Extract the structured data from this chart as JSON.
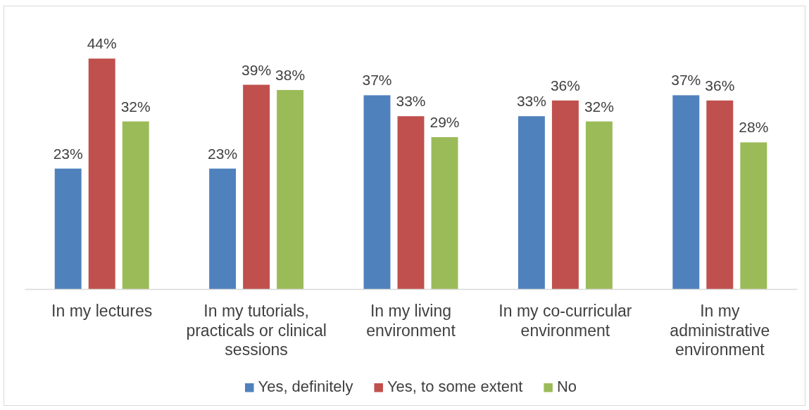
{
  "chart_data": {
    "type": "bar",
    "categories": [
      "In my lectures",
      "In my tutorials, practicals or clinical sessions",
      "In my living environment",
      "In my co-curricular environment",
      "In my administrative environment"
    ],
    "series": [
      {
        "name": "Yes, definitely",
        "color": "#4f81bd",
        "values": [
          23,
          23,
          37,
          33,
          37
        ],
        "value_labels": [
          "23%",
          "23%",
          "37%",
          "33%",
          "37%"
        ]
      },
      {
        "name": "Yes, to some extent",
        "color": "#c0504d",
        "values": [
          44,
          39,
          33,
          36,
          36
        ],
        "value_labels": [
          "44%",
          "39%",
          "33%",
          "36%",
          "36%"
        ]
      },
      {
        "name": "No",
        "color": "#9bbb59",
        "values": [
          32,
          38,
          29,
          32,
          28
        ],
        "value_labels": [
          "32%",
          "38%",
          "29%",
          "32%",
          "28%"
        ]
      }
    ],
    "tick_labels": "x",
    "legend": "bottom"
  }
}
